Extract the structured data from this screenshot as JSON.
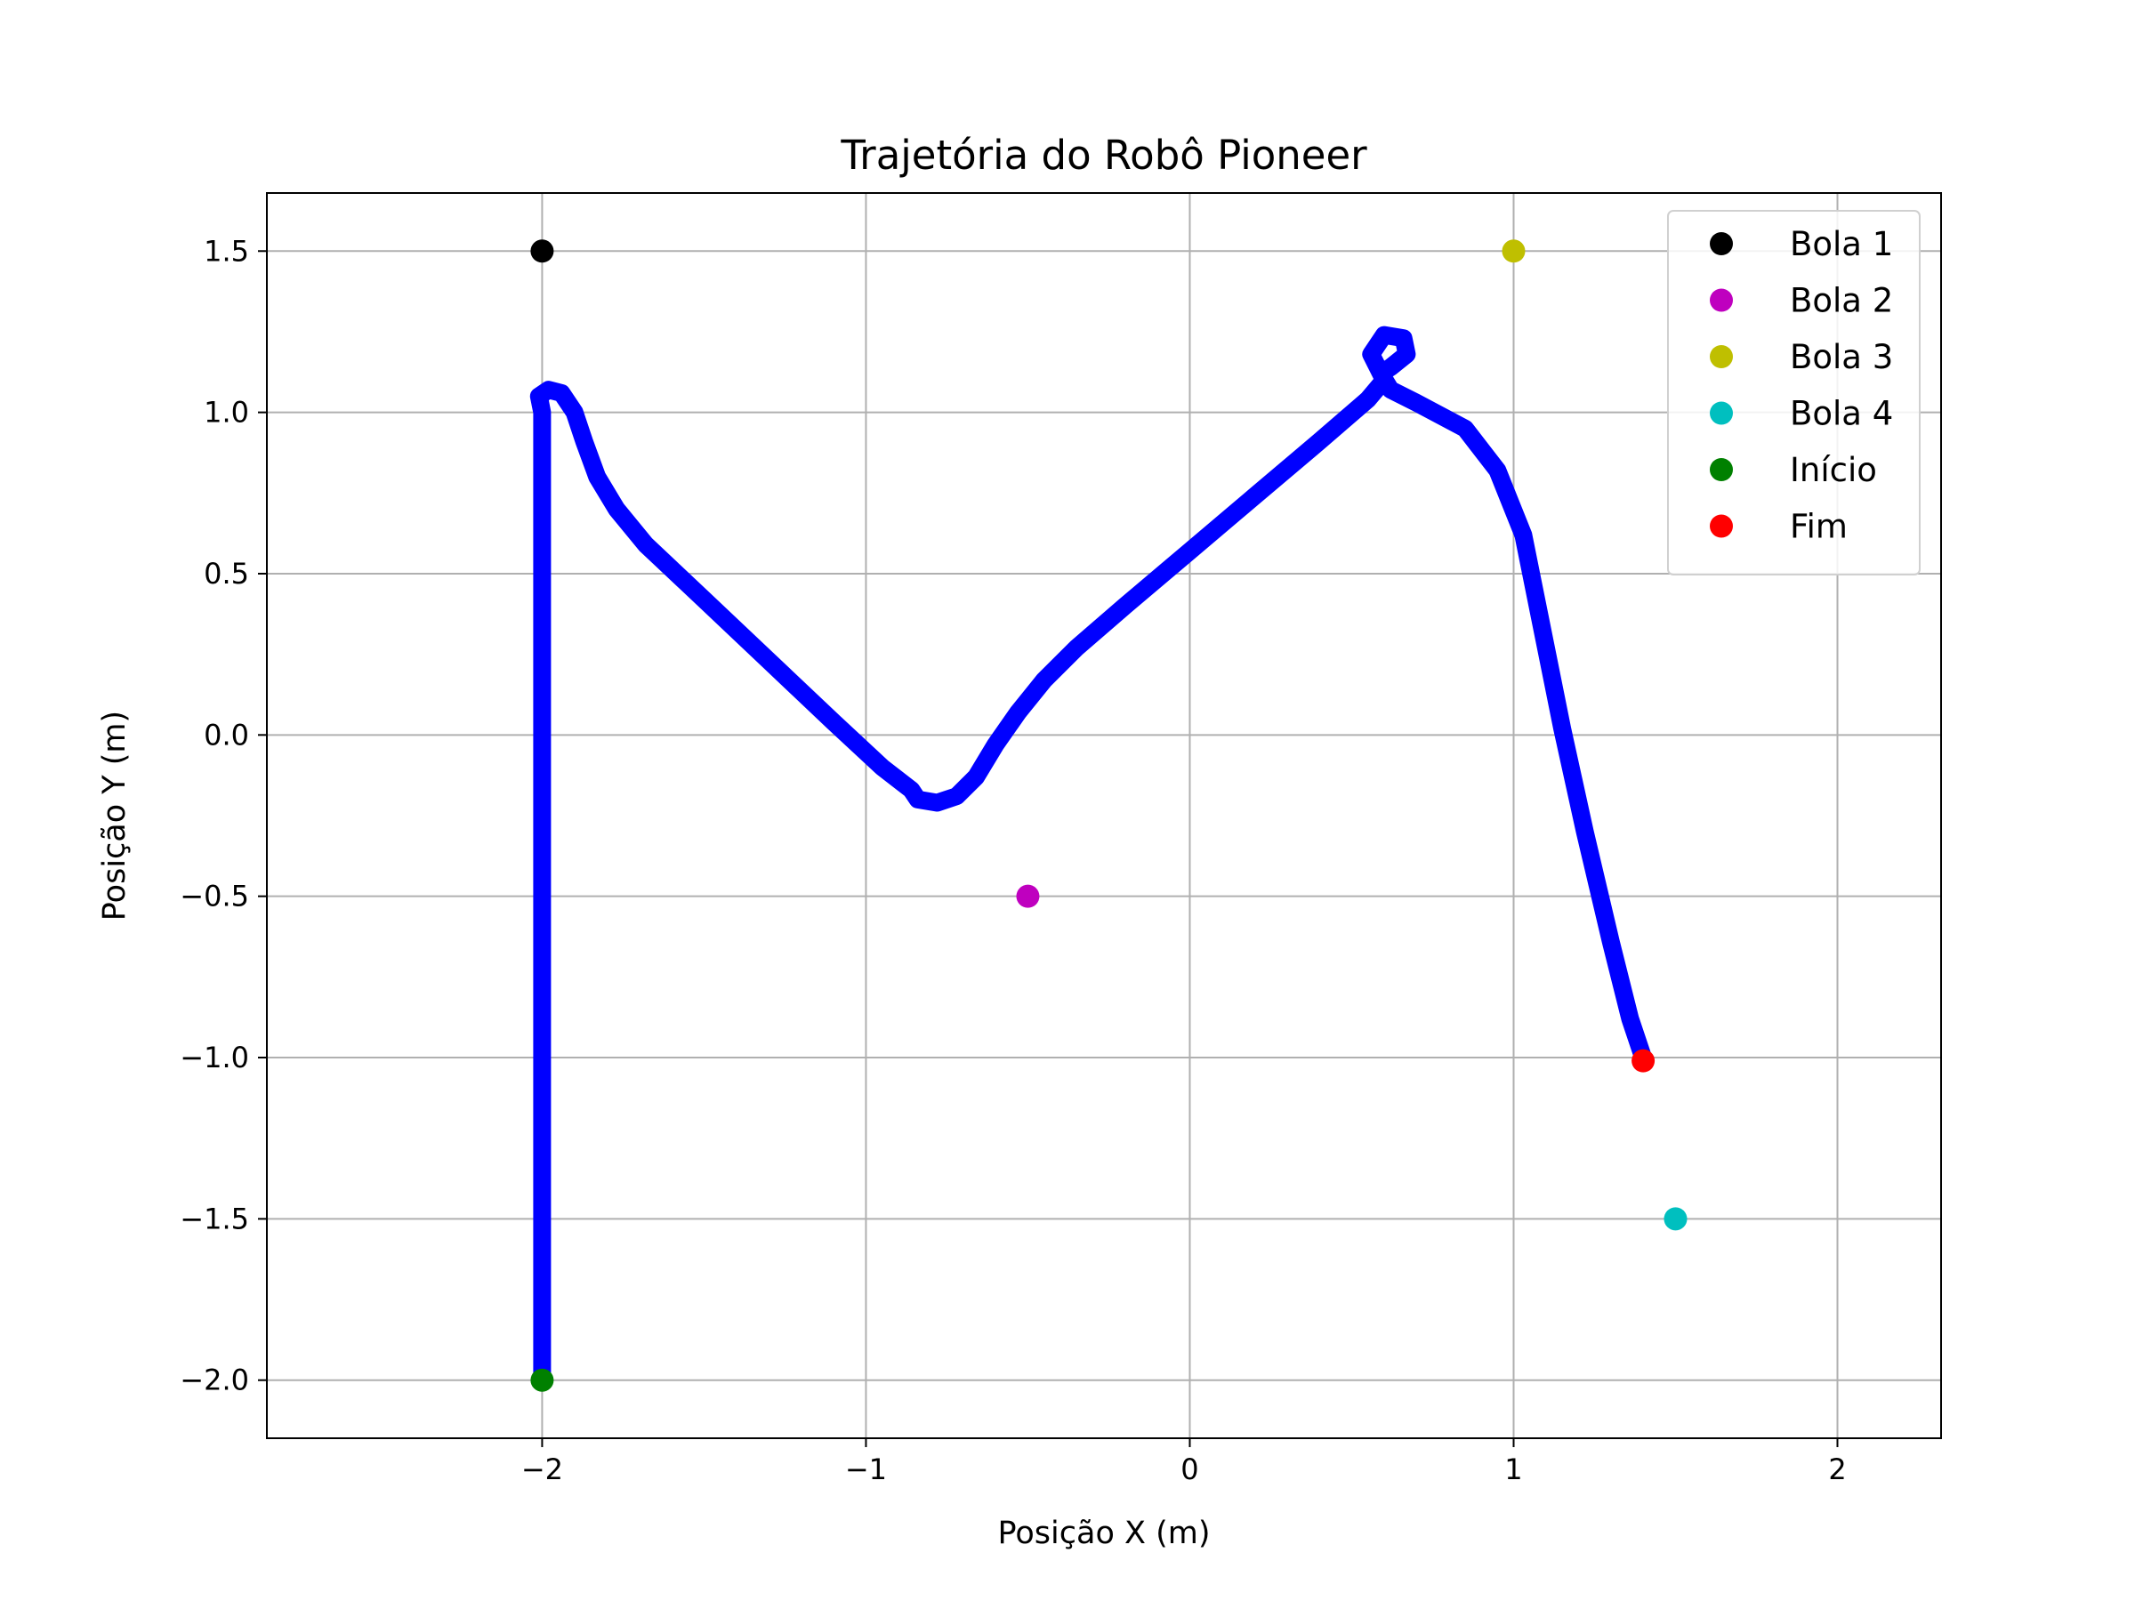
{
  "chart_data": {
    "type": "line",
    "title": "Trajetória do Robô Pioneer",
    "xlabel": "Posição X (m)",
    "ylabel": "Posição Y (m)",
    "xlim": [
      -2.85,
      2.32
    ],
    "ylim": [
      -2.18,
      1.68
    ],
    "xticks": [
      -2,
      -1,
      0,
      1,
      2
    ],
    "xtick_labels": [
      "−2",
      "−1",
      "0",
      "1",
      "2"
    ],
    "yticks": [
      1.5,
      1.0,
      0.5,
      0.0,
      -0.5,
      -1.0,
      -1.5,
      -2.0
    ],
    "ytick_labels": [
      "1.5",
      "1.0",
      "0.5",
      "0.0",
      "−0.5",
      "−1.0",
      "−1.5",
      "−2.0"
    ],
    "grid": true,
    "legend_position": "top-right",
    "trajectory": {
      "color": "#0000ff",
      "points": [
        [
          -2.0,
          -2.0
        ],
        [
          -2.0,
          -1.5
        ],
        [
          -2.0,
          -1.0
        ],
        [
          -2.0,
          -0.5
        ],
        [
          -2.0,
          0.0
        ],
        [
          -2.0,
          0.5
        ],
        [
          -2.0,
          1.0
        ],
        [
          -2.01,
          1.05
        ],
        [
          -1.98,
          1.07
        ],
        [
          -1.94,
          1.06
        ],
        [
          -1.9,
          1.0
        ],
        [
          -1.87,
          0.91
        ],
        [
          -1.83,
          0.8
        ],
        [
          -1.77,
          0.7
        ],
        [
          -1.68,
          0.59
        ],
        [
          -1.5,
          0.42
        ],
        [
          -1.3,
          0.23
        ],
        [
          -1.1,
          0.04
        ],
        [
          -0.95,
          -0.1
        ],
        [
          -0.86,
          -0.17
        ],
        [
          -0.84,
          -0.2
        ],
        [
          -0.78,
          -0.21
        ],
        [
          -0.72,
          -0.19
        ],
        [
          -0.66,
          -0.13
        ],
        [
          -0.6,
          -0.03
        ],
        [
          -0.53,
          0.07
        ],
        [
          -0.45,
          0.17
        ],
        [
          -0.35,
          0.27
        ],
        [
          -0.2,
          0.4
        ],
        [
          0.0,
          0.57
        ],
        [
          0.2,
          0.74
        ],
        [
          0.4,
          0.91
        ],
        [
          0.55,
          1.04
        ],
        [
          0.6,
          1.1
        ],
        [
          0.56,
          1.18
        ],
        [
          0.6,
          1.24
        ],
        [
          0.66,
          1.23
        ],
        [
          0.67,
          1.18
        ],
        [
          0.62,
          1.14
        ],
        [
          0.59,
          1.12
        ],
        [
          0.62,
          1.07
        ],
        [
          0.7,
          1.03
        ],
        [
          0.85,
          0.95
        ],
        [
          0.95,
          0.82
        ],
        [
          1.03,
          0.62
        ],
        [
          1.08,
          0.37
        ],
        [
          1.15,
          0.02
        ],
        [
          1.22,
          -0.3
        ],
        [
          1.3,
          -0.64
        ],
        [
          1.36,
          -0.88
        ],
        [
          1.4,
          -1.0
        ]
      ]
    },
    "points": [
      {
        "name": "Bola 1",
        "x": -2.0,
        "y": 1.5,
        "color": "#000000"
      },
      {
        "name": "Bola 2",
        "x": -0.5,
        "y": -0.5,
        "color": "#bf00bf"
      },
      {
        "name": "Bola 3",
        "x": 1.0,
        "y": 1.5,
        "color": "#bfbf00"
      },
      {
        "name": "Bola 4",
        "x": 1.5,
        "y": -1.5,
        "color": "#00bfbf"
      },
      {
        "name": "Início",
        "x": -2.0,
        "y": -2.0,
        "color": "#008000"
      },
      {
        "name": "Fim",
        "x": 1.4,
        "y": -1.01,
        "color": "#ff0000"
      }
    ]
  }
}
